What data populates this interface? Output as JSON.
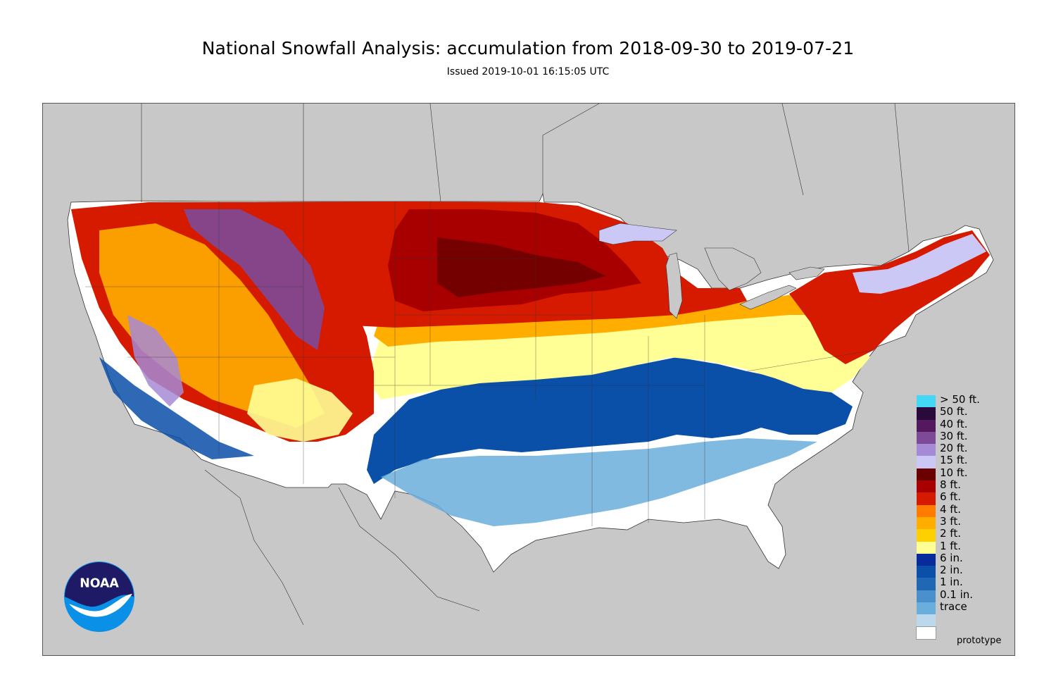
{
  "header": {
    "title": "National Snowfall Analysis: accumulation from 2018-09-30 to 2019-07-21",
    "subtitle": "Issued 2019-10-01 16:15:05 UTC"
  },
  "map": {
    "background_color": "#c8c8c8",
    "land_color": "#ffffff",
    "water_color": "#c8c8c8"
  },
  "legend": {
    "items": [
      {
        "label": "> 50 ft.",
        "color": "#45d8f6"
      },
      {
        "label": "50 ft.",
        "color": "#2a0a3a"
      },
      {
        "label": "40 ft.",
        "color": "#54185f"
      },
      {
        "label": "30 ft.",
        "color": "#7d4a98"
      },
      {
        "label": "20 ft.",
        "color": "#a68ad6"
      },
      {
        "label": "15 ft.",
        "color": "#ccc8f6"
      },
      {
        "label": "10 ft.",
        "color": "#6b0000"
      },
      {
        "label": "8 ft.",
        "color": "#a80000"
      },
      {
        "label": "6 ft.",
        "color": "#d61a00"
      },
      {
        "label": "4 ft.",
        "color": "#ff7c00"
      },
      {
        "label": "3 ft.",
        "color": "#ffae00"
      },
      {
        "label": "2 ft.",
        "color": "#ffd000"
      },
      {
        "label": "1 ft.",
        "color": "#ffff96"
      },
      {
        "label": "6 in.",
        "color": "#082a9b"
      },
      {
        "label": "2 in.",
        "color": "#0a4fa8"
      },
      {
        "label": "1 in.",
        "color": "#2068b4"
      },
      {
        "label": "0.1 in.",
        "color": "#4a90cc"
      },
      {
        "label": "trace",
        "color": "#6aaedc"
      },
      {
        "label": "",
        "color": "#bcd8ec"
      },
      {
        "label": "",
        "color": "#ffffff"
      }
    ]
  },
  "footer": {
    "watermark": "prototype"
  },
  "logo": {
    "text": "NOAA",
    "icon": "noaa-logo-icon"
  }
}
